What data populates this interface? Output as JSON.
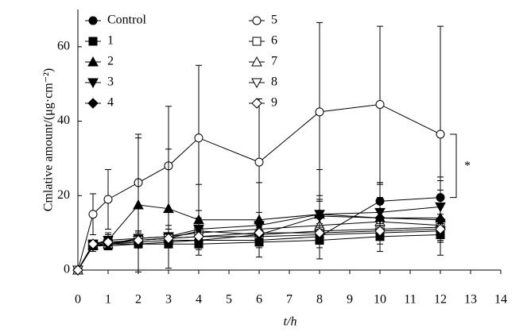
{
  "chart_data": {
    "type": "line",
    "x_label": "t/h",
    "y_label": "Cmlative amount/(μg·cm⁻²)",
    "annotation": "*",
    "x": [
      0,
      0.5,
      1,
      2,
      3,
      4,
      6,
      8,
      10,
      12
    ],
    "xlim": [
      0,
      14
    ],
    "xticks": [
      0,
      1,
      2,
      3,
      4,
      5,
      6,
      7,
      8,
      9,
      10,
      11,
      12,
      13,
      14
    ],
    "ylim": [
      0,
      70
    ],
    "yticks": [
      0,
      20,
      40,
      60
    ],
    "series": [
      {
        "name": "Control",
        "color": "#000000",
        "marker": "circle",
        "filled": true,
        "values": [
          0,
          6.5,
          7,
          7.5,
          8,
          8,
          8,
          9,
          18.5,
          19.5
        ],
        "errors": [
          0,
          1,
          1,
          1,
          1,
          1,
          1.5,
          2,
          5,
          5.5
        ]
      },
      {
        "name": "5",
        "color": "#000000",
        "marker": "circle",
        "filled": false,
        "values": [
          0,
          15,
          19,
          23.5,
          28,
          35.5,
          29,
          42.5,
          44.5,
          36.5
        ],
        "errors": [
          0,
          5.5,
          8,
          13,
          16,
          19.5,
          17,
          24,
          21,
          29
        ]
      },
      {
        "name": "1",
        "color": "#000000",
        "marker": "square",
        "filled": true,
        "values": [
          0,
          6.5,
          6.5,
          7,
          7,
          7,
          7.5,
          8,
          9,
          9.5
        ],
        "errors": [
          0,
          1,
          1,
          1,
          1,
          1.5,
          1.5,
          2,
          2,
          2
        ]
      },
      {
        "name": "6",
        "color": "#000000",
        "marker": "square",
        "filled": false,
        "values": [
          0,
          7,
          7.5,
          8,
          8.5,
          10.5,
          9.5,
          10.5,
          11,
          11.5
        ],
        "errors": [
          0,
          1,
          1,
          1.5,
          1.5,
          2,
          2,
          2,
          2.5,
          2.5
        ]
      },
      {
        "name": "2",
        "color": "#000000",
        "marker": "triangle-up",
        "filled": true,
        "values": [
          0,
          6.5,
          8,
          17.5,
          16.5,
          13.5,
          13.5,
          15,
          14,
          14
        ],
        "errors": [
          0,
          1.5,
          2,
          18,
          16,
          9.5,
          10,
          12,
          9,
          10
        ]
      },
      {
        "name": "7",
        "color": "#000000",
        "marker": "triangle-up",
        "filled": false,
        "values": [
          0,
          7,
          7,
          8.5,
          9,
          10,
          11,
          12,
          13,
          12
        ],
        "errors": [
          0,
          1,
          1,
          1.5,
          2,
          2,
          2,
          2.5,
          3,
          3
        ]
      },
      {
        "name": "3",
        "color": "#000000",
        "marker": "triangle-down",
        "filled": true,
        "values": [
          0,
          7,
          8,
          8.5,
          9,
          11,
          12,
          15,
          15.5,
          17
        ],
        "errors": [
          0,
          1,
          1.5,
          2,
          2,
          3,
          3.5,
          4,
          4,
          4.5
        ]
      },
      {
        "name": "8",
        "color": "#000000",
        "marker": "triangle-down",
        "filled": false,
        "values": [
          0,
          6.5,
          7,
          8,
          8.5,
          9,
          9,
          9.5,
          10,
          10.5
        ],
        "errors": [
          0,
          1,
          1,
          1.5,
          1.5,
          1.5,
          2,
          2,
          2,
          2.5
        ]
      },
      {
        "name": "4",
        "color": "#000000",
        "marker": "diamond",
        "filled": true,
        "values": [
          0,
          6.5,
          7,
          7,
          7.5,
          8,
          9.5,
          14.5,
          14,
          13.5
        ],
        "errors": [
          0,
          1,
          1,
          1,
          1.5,
          1.5,
          2,
          5.5,
          4,
          3.5
        ]
      },
      {
        "name": "9",
        "color": "#000000",
        "marker": "diamond",
        "filled": false,
        "values": [
          0,
          7,
          7.5,
          8,
          8.5,
          9,
          10,
          10,
          10.5,
          11
        ],
        "errors": [
          0,
          1,
          1,
          1,
          1.5,
          1.5,
          2,
          2,
          2,
          2.5
        ]
      }
    ]
  }
}
